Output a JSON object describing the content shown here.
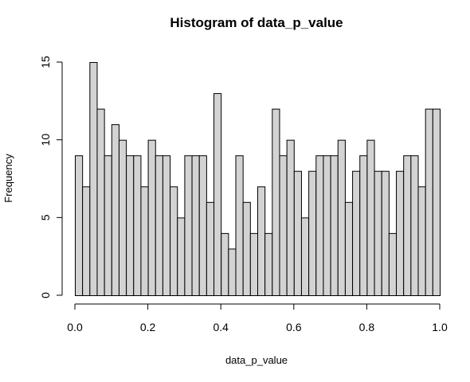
{
  "chart_data": {
    "type": "histogram",
    "title": "Histogram of data_p_value",
    "xlabel": "data_p_value",
    "ylabel": "Frequency",
    "xlim": [
      0,
      1
    ],
    "ylim": [
      0,
      15
    ],
    "bin_width": 0.02,
    "bin_starts": [
      0.0,
      0.02,
      0.04,
      0.06,
      0.08,
      0.1,
      0.12,
      0.14,
      0.16,
      0.18,
      0.2,
      0.22,
      0.24,
      0.26,
      0.28,
      0.3,
      0.32,
      0.34,
      0.36,
      0.38,
      0.4,
      0.42,
      0.44,
      0.46,
      0.48,
      0.5,
      0.52,
      0.54,
      0.56,
      0.58,
      0.6,
      0.62,
      0.64,
      0.66,
      0.68,
      0.7,
      0.72,
      0.74,
      0.76,
      0.78,
      0.8,
      0.82,
      0.84,
      0.86,
      0.88,
      0.9,
      0.92,
      0.94,
      0.96,
      0.98
    ],
    "values": [
      9,
      7,
      15,
      12,
      9,
      11,
      10,
      9,
      9,
      7,
      10,
      9,
      9,
      7,
      5,
      9,
      9,
      9,
      6,
      13,
      4,
      3,
      9,
      6,
      4,
      7,
      4,
      12,
      9,
      10,
      8,
      5,
      8,
      9,
      9,
      9,
      10,
      6,
      8,
      9,
      10,
      8,
      8,
      4,
      8,
      9,
      9,
      7,
      12,
      12
    ],
    "x_ticks": [
      "0.0",
      "0.2",
      "0.4",
      "0.6",
      "0.8",
      "1.0"
    ],
    "x_tick_values": [
      0,
      0.2,
      0.4,
      0.6,
      0.8,
      1.0
    ],
    "y_ticks": [
      "0",
      "5",
      "10",
      "15"
    ],
    "y_tick_values": [
      0,
      5,
      10,
      15
    ],
    "bar_fill": "#d3d3d3",
    "bar_stroke": "#000000",
    "grid": false,
    "legend": "none"
  }
}
